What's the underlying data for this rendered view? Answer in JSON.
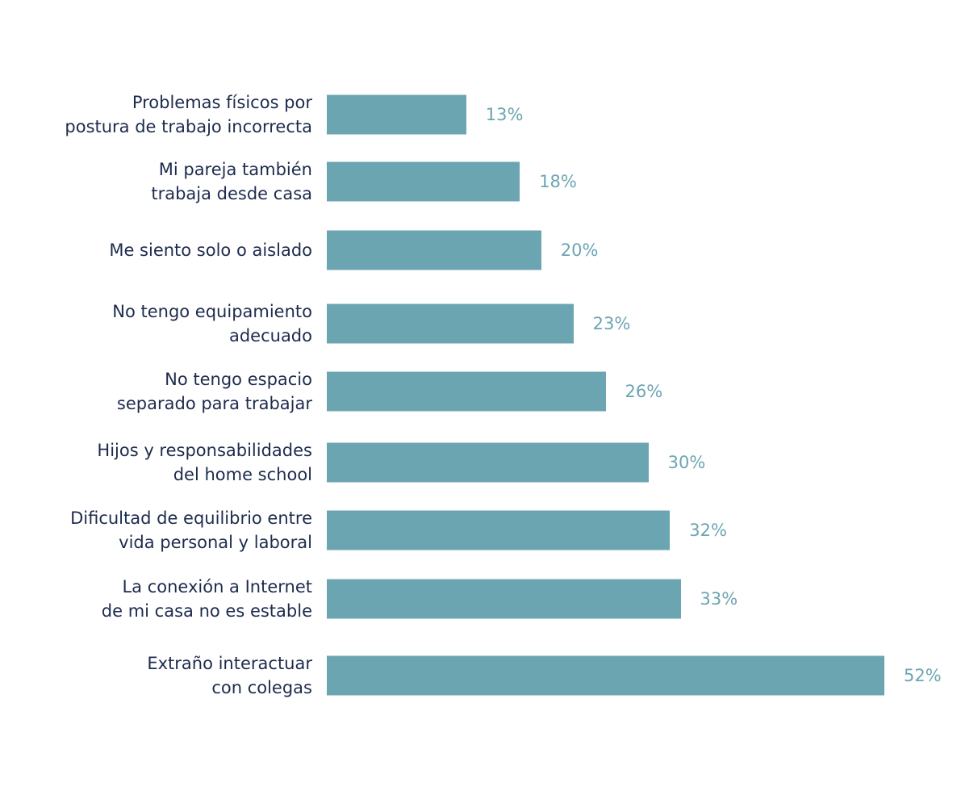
{
  "chart_data": {
    "type": "bar",
    "orientation": "horizontal",
    "title": "",
    "xlabel": "",
    "ylabel": "",
    "categories": [
      "Problemas físicos por\npostura de trabajo incorrecta",
      "Mi pareja también\ntrabaja desde casa",
      "Me siento solo o aislado",
      "No tengo equipamiento\nadecuado",
      "No tengo espacio\nseparado para trabajar",
      "Hijos y responsabilidades\ndel home school",
      "Dificultad de equilibrio entre\nvida personal y laboral",
      "La conexión a Internet\nde mi casa no es estable",
      "Extraño interactuar\ncon colegas"
    ],
    "values": [
      13,
      18,
      20,
      23,
      26,
      30,
      32,
      33,
      52
    ],
    "value_labels": [
      "13%",
      "18%",
      "20%",
      "23%",
      "26%",
      "30%",
      "32%",
      "33%",
      "52%"
    ],
    "unit": "%",
    "grid": false,
    "legend": "none",
    "colors": {
      "bar": "#6ca5b2",
      "value_label": "#6ca5b2",
      "category_label": "#1d2b4d"
    }
  }
}
